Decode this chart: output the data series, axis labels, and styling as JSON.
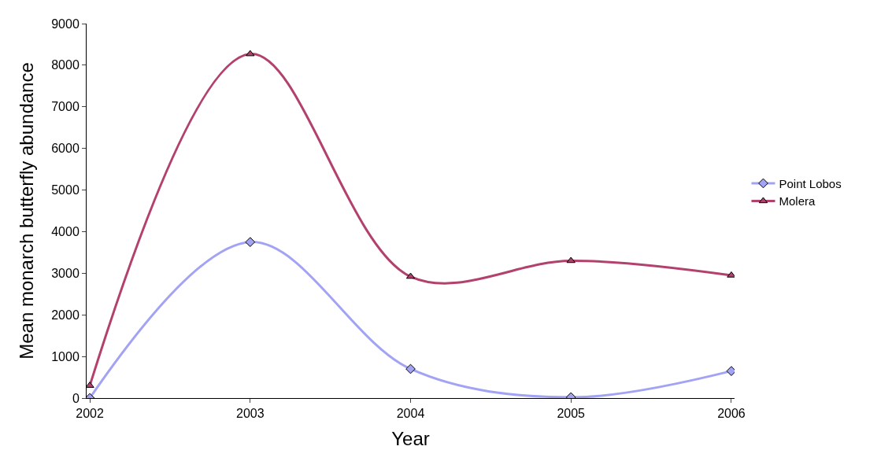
{
  "chart_data": {
    "type": "line",
    "xlabel": "Year",
    "ylabel": "Mean monarch butterfly abundance",
    "categories": [
      "2002",
      "2003",
      "2004",
      "2005",
      "2006"
    ],
    "series": [
      {
        "name": "Point Lobos",
        "color": "#a3a3f5",
        "marker": "diamond",
        "values": [
          0,
          3750,
          700,
          20,
          650
        ]
      },
      {
        "name": "Molera",
        "color": "#b3416e",
        "marker": "triangle",
        "values": [
          300,
          8270,
          2920,
          3300,
          2950
        ]
      }
    ],
    "ylim": [
      0,
      9000
    ],
    "yticks": [
      0,
      1000,
      2000,
      3000,
      4000,
      5000,
      6000,
      7000,
      8000,
      9000
    ],
    "grid": false,
    "legend": "right",
    "line_style": "solid"
  }
}
